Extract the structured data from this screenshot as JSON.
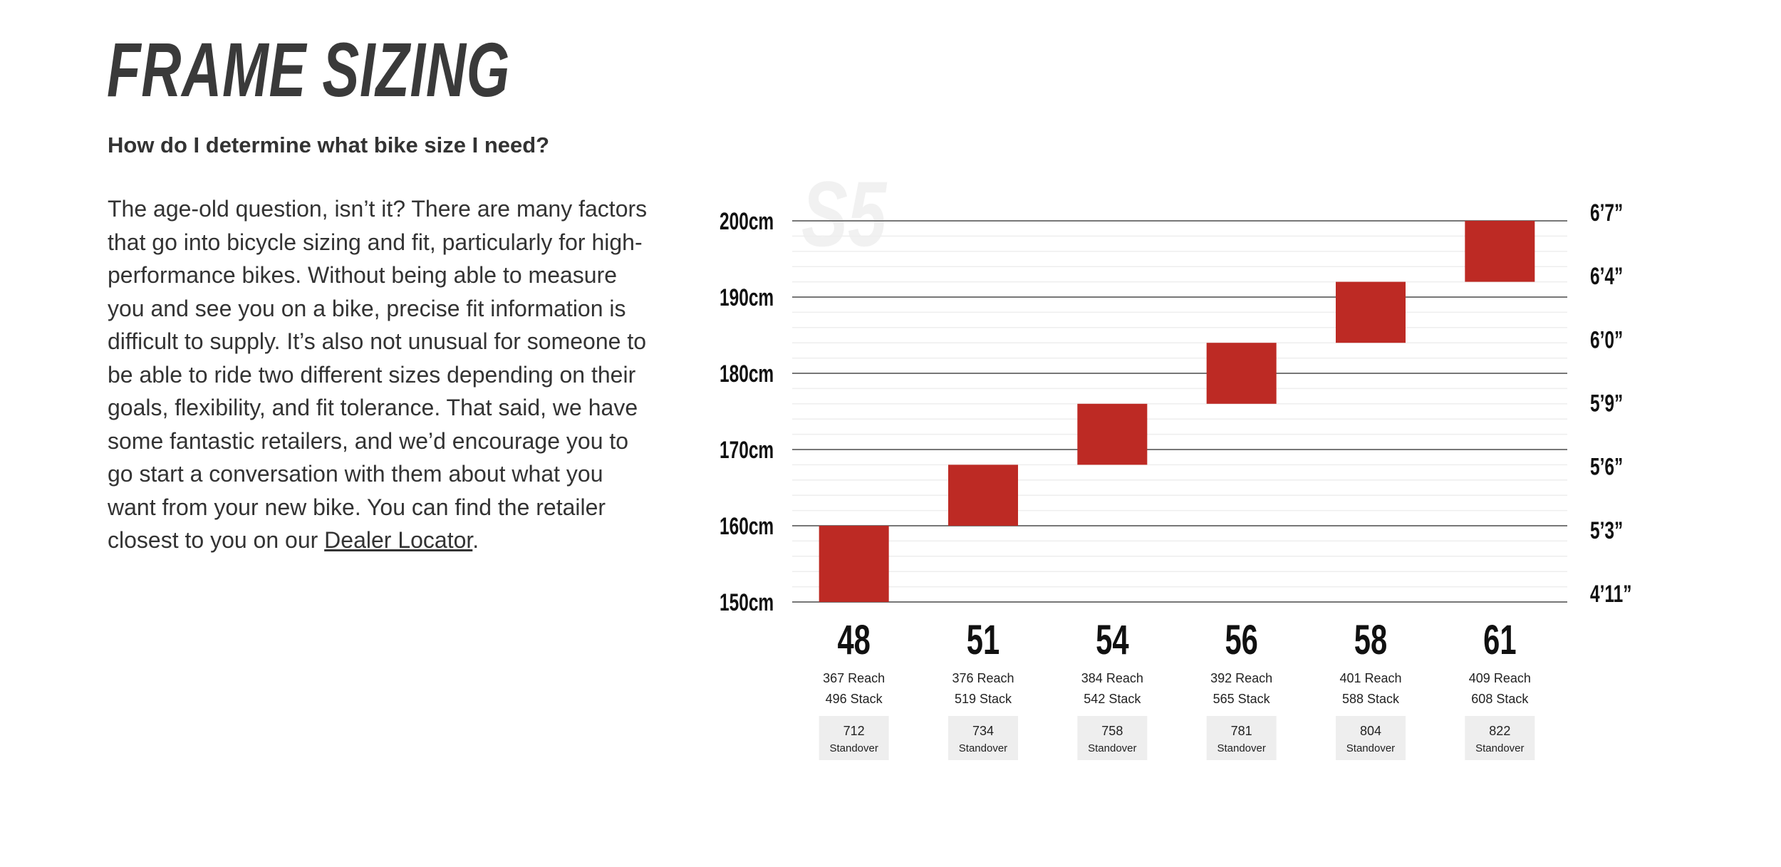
{
  "page": {
    "title": "FRAME SIZING",
    "subheading": "How do I determine what bike size I need?",
    "body_text": "The age-old question, isn’t it? There are many factors that go into bicycle sizing and fit, particularly for high-performance bikes. Without being able to measure you and see you on a bike, precise fit information is difficult to supply. It’s also not unusual for someone to be able to ride two different sizes depending on their goals, flexibility, and fit tolerance. That said, we have some fantastic retailers, and we’d encourage you to go start a conversation with them about what you want from your new bike. You can find the retailer closest to you on our ",
    "link_text": "Dealer Locator",
    "body_end": "."
  },
  "colors": {
    "accent": "#bd2a24",
    "text": "#333333",
    "watermark": "#f1f1f1",
    "standover_bg": "#eeeeee",
    "grid_major": "#777777",
    "grid_minor": "#eeeeee"
  },
  "chart_data": {
    "type": "bar",
    "watermark": "S5",
    "ylim": [
      150,
      200
    ],
    "y_unit": "cm",
    "y_ticks_left": [
      "150cm",
      "160cm",
      "170cm",
      "180cm",
      "190cm",
      "200cm"
    ],
    "y_ticks_right": [
      "4’11”",
      "5’3”",
      "5’6”",
      "5’9”",
      "6’0”",
      "6’4”",
      "6’7”"
    ],
    "sizes": [
      {
        "size": "48",
        "rider_height_cm": [
          150,
          160
        ],
        "reach": "367 Reach",
        "stack": "496 Stack",
        "standover": "712",
        "standover_label": "Standover"
      },
      {
        "size": "51",
        "rider_height_cm": [
          160,
          168
        ],
        "reach": "376 Reach",
        "stack": "519 Stack",
        "standover": "734",
        "standover_label": "Standover"
      },
      {
        "size": "54",
        "rider_height_cm": [
          168,
          176
        ],
        "reach": "384 Reach",
        "stack": "542 Stack",
        "standover": "758",
        "standover_label": "Standover"
      },
      {
        "size": "56",
        "rider_height_cm": [
          176,
          184
        ],
        "reach": "392 Reach",
        "stack": "565 Stack",
        "standover": "781",
        "standover_label": "Standover"
      },
      {
        "size": "58",
        "rider_height_cm": [
          184,
          192
        ],
        "reach": "401 Reach",
        "stack": "588 Stack",
        "standover": "804",
        "standover_label": "Standover"
      },
      {
        "size": "61",
        "rider_height_cm": [
          192,
          200
        ],
        "reach": "409 Reach",
        "stack": "608 Stack",
        "standover": "822",
        "standover_label": "Standover"
      }
    ]
  }
}
